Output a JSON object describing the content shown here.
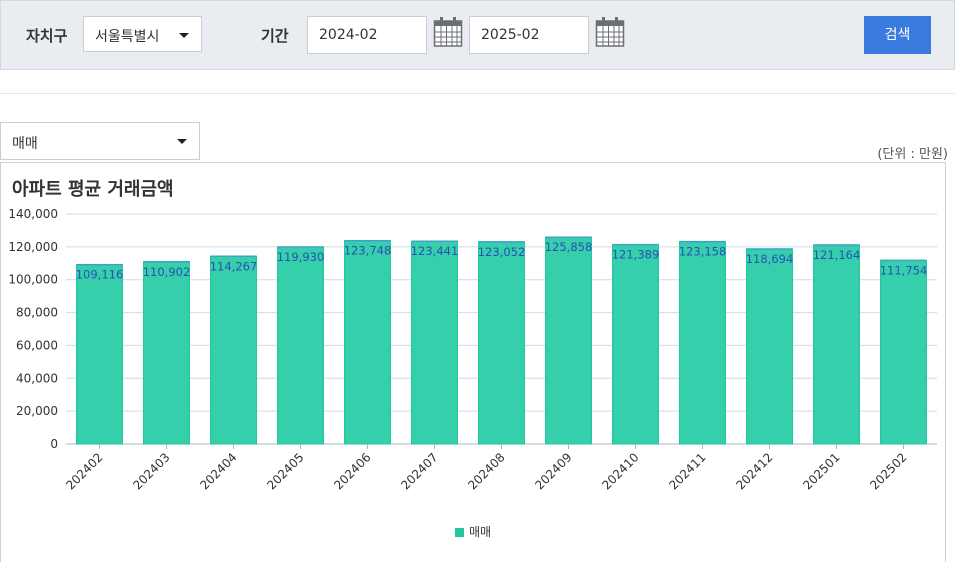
{
  "filter": {
    "region_label": "자치구",
    "region_value": "서울특별시",
    "period_label": "기간",
    "start": "2024-02",
    "end": "2025-02",
    "search_label": "검색"
  },
  "type_select": "매매",
  "unit": "(단위 : 만원)",
  "chart_title": "아파트 평균 거래금액",
  "chart_data": {
    "type": "bar",
    "title": "아파트 평균 거래금액",
    "categories": [
      "202402",
      "202403",
      "202404",
      "202405",
      "202406",
      "202407",
      "202408",
      "202409",
      "202410",
      "202411",
      "202412",
      "202501",
      "202502"
    ],
    "series": [
      {
        "name": "매매",
        "values": [
          109116,
          110902,
          114267,
          119930,
          123748,
          123441,
          123052,
          125858,
          121389,
          123158,
          118694,
          121164,
          111754
        ],
        "color": "#22c79c"
      }
    ],
    "ylim": [
      0,
      140000
    ],
    "yticks": [
      0,
      20000,
      40000,
      60000,
      80000,
      100000,
      120000,
      140000
    ],
    "grid": true,
    "legend": "bottom"
  }
}
